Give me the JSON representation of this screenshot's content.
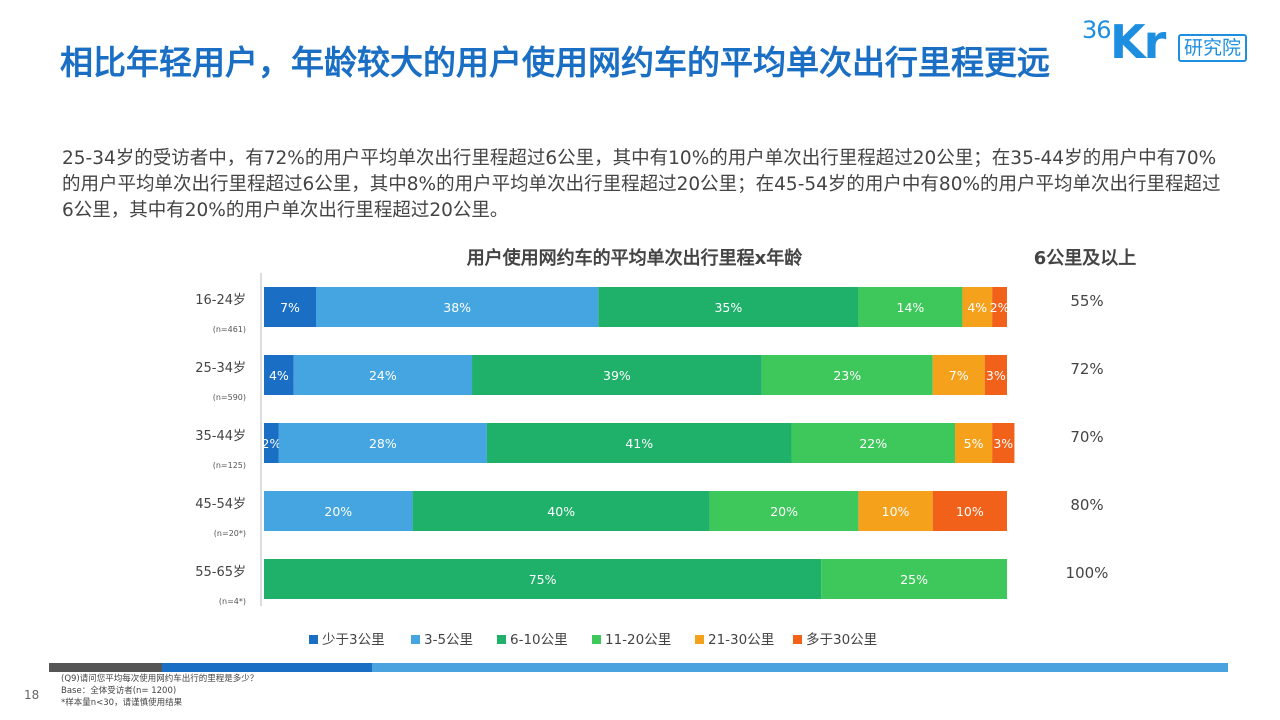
{
  "title": "相比年轻用户，年龄较大的用户使用网约车的平均单次出行里程更远",
  "summary": "25-34岁的受访者中，有72%的用户平均单次出行里程超过6公里，其中有10%的用户单次出行里程超过20公里；在35-44岁的用户中有70%的用户平均单次出行里程超过6公里，其中8%的用户平均单次出行里程超过20公里；在45-54岁的用户中有80%的用户平均单次出行里程超过6公里，其中有20%的用户单次出行里程超过20公里。",
  "logo": {
    "mark": "36Kr",
    "text": "研究院"
  },
  "page_number": "18",
  "footnotes": [
    "(Q9)请问您平均每次使用网约车出行的里程是多少？",
    "Base：全体受访者(n= 1200)",
    "*样本量n<30，请谨慎使用结果"
  ],
  "colors": {
    "title": "#1a6fc4",
    "series": [
      "#1a6fc4",
      "#45a5e0",
      "#1fb06a",
      "#3ec85c",
      "#f5a11c",
      "#f2611a"
    ]
  },
  "chart_data": {
    "type": "bar",
    "orientation": "horizontal",
    "stacked": true,
    "title": "用户使用网约车的平均单次出行里程x年龄",
    "side_column_title": "6公里及以上",
    "categories": [
      {
        "label": "16-24岁",
        "sample": "(n=461)"
      },
      {
        "label": "25-34岁",
        "sample": "(n=590)"
      },
      {
        "label": "35-44岁",
        "sample": "(n=125)"
      },
      {
        "label": "45-54岁",
        "sample": "(n=20*)"
      },
      {
        "label": "55-65岁",
        "sample": "(n=4*)"
      }
    ],
    "series": [
      {
        "name": "少于3公里",
        "values": [
          7,
          4,
          2,
          0,
          0
        ]
      },
      {
        "name": "3-5公里",
        "values": [
          38,
          24,
          28,
          20,
          0
        ]
      },
      {
        "name": "6-10公里",
        "values": [
          35,
          39,
          41,
          40,
          75
        ]
      },
      {
        "name": "11-20公里",
        "values": [
          14,
          23,
          22,
          20,
          25
        ]
      },
      {
        "name": "21-30公里",
        "values": [
          4,
          7,
          5,
          10,
          0
        ]
      },
      {
        "name": "多于30公里",
        "values": [
          2,
          3,
          3,
          10,
          0
        ]
      }
    ],
    "side_values": [
      "55%",
      "72%",
      "70%",
      "80%",
      "100%"
    ],
    "legend_position": "bottom",
    "xlim": [
      0,
      100
    ],
    "grid": false
  }
}
